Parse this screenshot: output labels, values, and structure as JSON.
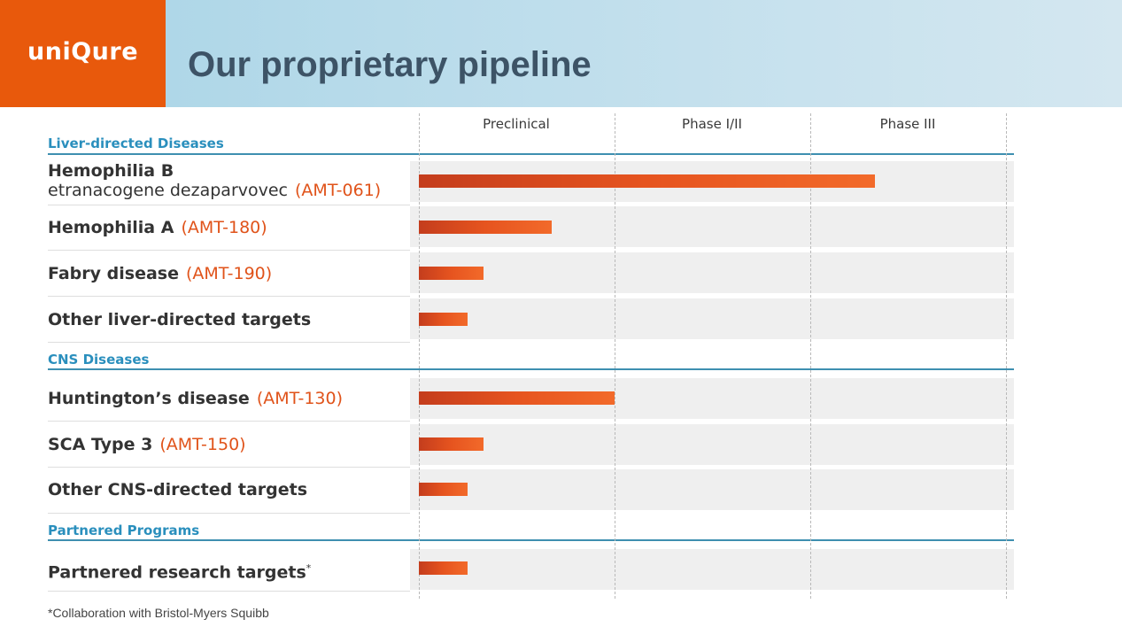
{
  "brand": {
    "logo_text": "uniQure",
    "logo_color": "#e8590c"
  },
  "page": {
    "title": "Our proprietary pipeline"
  },
  "chart_data": {
    "type": "bar",
    "orientation": "horizontal",
    "title": "Our proprietary pipeline",
    "phases": [
      "Preclinical",
      "Phase I/II",
      "Phase III"
    ],
    "xlim": [
      0,
      3
    ],
    "xunit": "development phase progress",
    "sections": [
      {
        "label": "Liver-directed Diseases",
        "rows": [
          {
            "name": "Hemophilia B",
            "sub": "etranacogene dezaparvovec",
            "code": "(AMT-061)",
            "value": 2.33
          },
          {
            "name": "Hemophilia A",
            "code": "(AMT-180)",
            "value": 0.68
          },
          {
            "name": "Fabry disease",
            "code": "(AMT-190)",
            "value": 0.33
          },
          {
            "name": "Other liver-directed targets",
            "value": 0.25
          }
        ]
      },
      {
        "label": "CNS Diseases",
        "rows": [
          {
            "name": "Huntington’s disease",
            "code": "(AMT-130)",
            "value": 1.0
          },
          {
            "name": "SCA Type 3",
            "code": "(AMT-150)",
            "value": 0.33
          },
          {
            "name": "Other CNS-directed targets",
            "value": 0.25
          }
        ]
      },
      {
        "label": "Partnered Programs",
        "rows": [
          {
            "name": "Partnered research targets",
            "sup": "*",
            "value": 0.25
          }
        ]
      }
    ],
    "colors": {
      "bar": "#e6541f",
      "section": "#2a8fbd",
      "code": "#e0531a"
    }
  },
  "footnote": "*Collaboration with Bristol-Myers Squibb"
}
